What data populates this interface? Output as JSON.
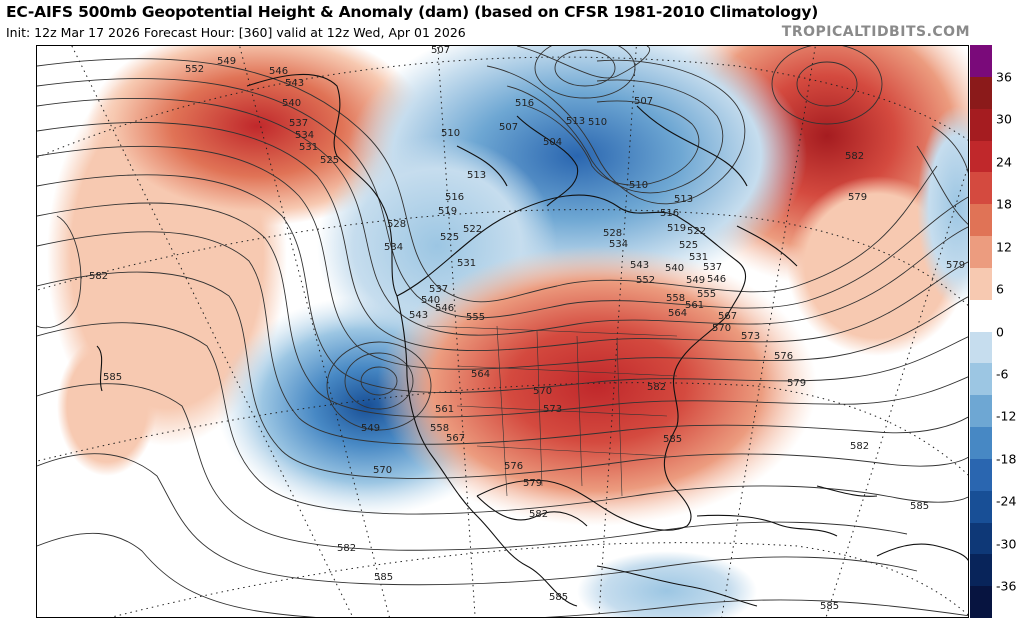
{
  "header": {
    "title": "EC-AIFS 500mb Geopotential Height & Anomaly (dam) (based on CFSR 1981-2010 Climatology)",
    "subtitle": "Init: 12z Mar 17 2026   Forecast Hour: [360]   valid at 12z Wed, Apr 01 2026",
    "credit": "TROPICALTIDBITS.COM"
  },
  "colorbar": {
    "labels": [
      "36",
      "30",
      "24",
      "18",
      "12",
      "6",
      "0",
      "-6",
      "-12",
      "-18",
      "-24",
      "-30",
      "-36"
    ],
    "colors": [
      "#7a0a7a",
      "#8b1a1a",
      "#a51c20",
      "#c0282b",
      "#d44a3f",
      "#e07356",
      "#ec9c7f",
      "#f7c9b1",
      "#ffffff",
      "#c6ddee",
      "#9cc6e3",
      "#6ea7d3",
      "#4788c4",
      "#2a66b0",
      "#184f96",
      "#0e3877",
      "#08245a",
      "#071440"
    ]
  },
  "map": {
    "contour_labels": [
      "552",
      "549",
      "546",
      "543",
      "540",
      "537",
      "534",
      "531",
      "525",
      "528",
      "534",
      "540",
      "543",
      "546",
      "537",
      "555",
      "564",
      "558",
      "549",
      "561",
      "567",
      "570",
      "573",
      "576",
      "579",
      "582",
      "585",
      "513",
      "516",
      "510",
      "507",
      "504",
      "519",
      "522",
      "525",
      "528",
      "531",
      "534",
      "537",
      "540",
      "543",
      "546",
      "549",
      "552",
      "555",
      "558",
      "561",
      "564",
      "567",
      "570",
      "573",
      "576",
      "579",
      "582",
      "585"
    ],
    "anomaly_centers": [
      {
        "sign": "negative",
        "region": "Hudson Bay / Canada"
      },
      {
        "sign": "negative",
        "region": "Off California coast"
      },
      {
        "sign": "positive",
        "region": "Great Lakes / Eastern US"
      },
      {
        "sign": "positive",
        "region": "North Atlantic"
      },
      {
        "sign": "positive",
        "region": "Alaska / Bering"
      },
      {
        "sign": "negative",
        "region": "Central Atlantic"
      }
    ]
  }
}
